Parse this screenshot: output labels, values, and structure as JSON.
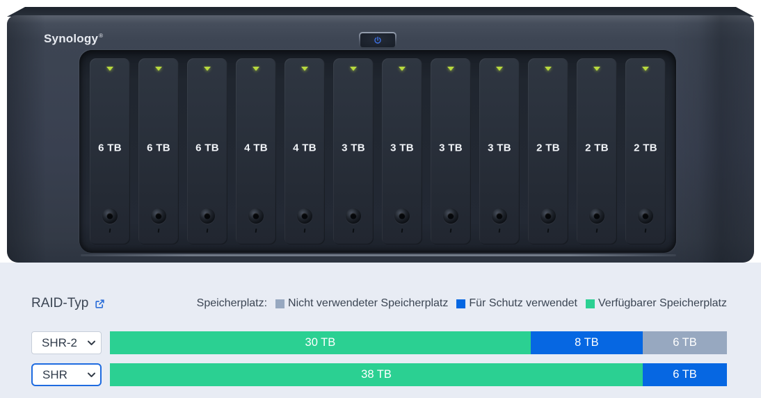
{
  "device": {
    "brand": "Synology",
    "brand_mark": "®",
    "drive_bays": [
      "6 TB",
      "6 TB",
      "6 TB",
      "4 TB",
      "4 TB",
      "3 TB",
      "3 TB",
      "3 TB",
      "3 TB",
      "2 TB",
      "2 TB",
      "2 TB"
    ]
  },
  "calculator": {
    "raid_type_label": "RAID-Typ",
    "legend_title": "Speicherplatz:",
    "legend": [
      {
        "key": "unused",
        "label": "Nicht verwendeter Speicherplatz"
      },
      {
        "key": "protection",
        "label": "Für Schutz verwendet"
      },
      {
        "key": "available",
        "label": "Verfügbarer Speicherplatz"
      }
    ],
    "rows": [
      {
        "selected_raid": "SHR-2",
        "highlighted": false,
        "segments": [
          {
            "key": "available",
            "tb": 30,
            "label": "30 TB"
          },
          {
            "key": "protection",
            "tb": 8,
            "label": "8 TB"
          },
          {
            "key": "unused",
            "tb": 6,
            "label": "6 TB"
          }
        ]
      },
      {
        "selected_raid": "SHR",
        "highlighted": true,
        "segments": [
          {
            "key": "available",
            "tb": 38,
            "label": "38 TB"
          },
          {
            "key": "protection",
            "tb": 6,
            "label": "6 TB"
          }
        ]
      }
    ]
  },
  "colors": {
    "available": "#2bd092",
    "protection": "#0667e2",
    "unused": "#97a8c0",
    "led": "#b9da3e",
    "link_blue": "#2d6fd9",
    "panel_bg": "#e8ecf4",
    "chassis": "#394050"
  }
}
